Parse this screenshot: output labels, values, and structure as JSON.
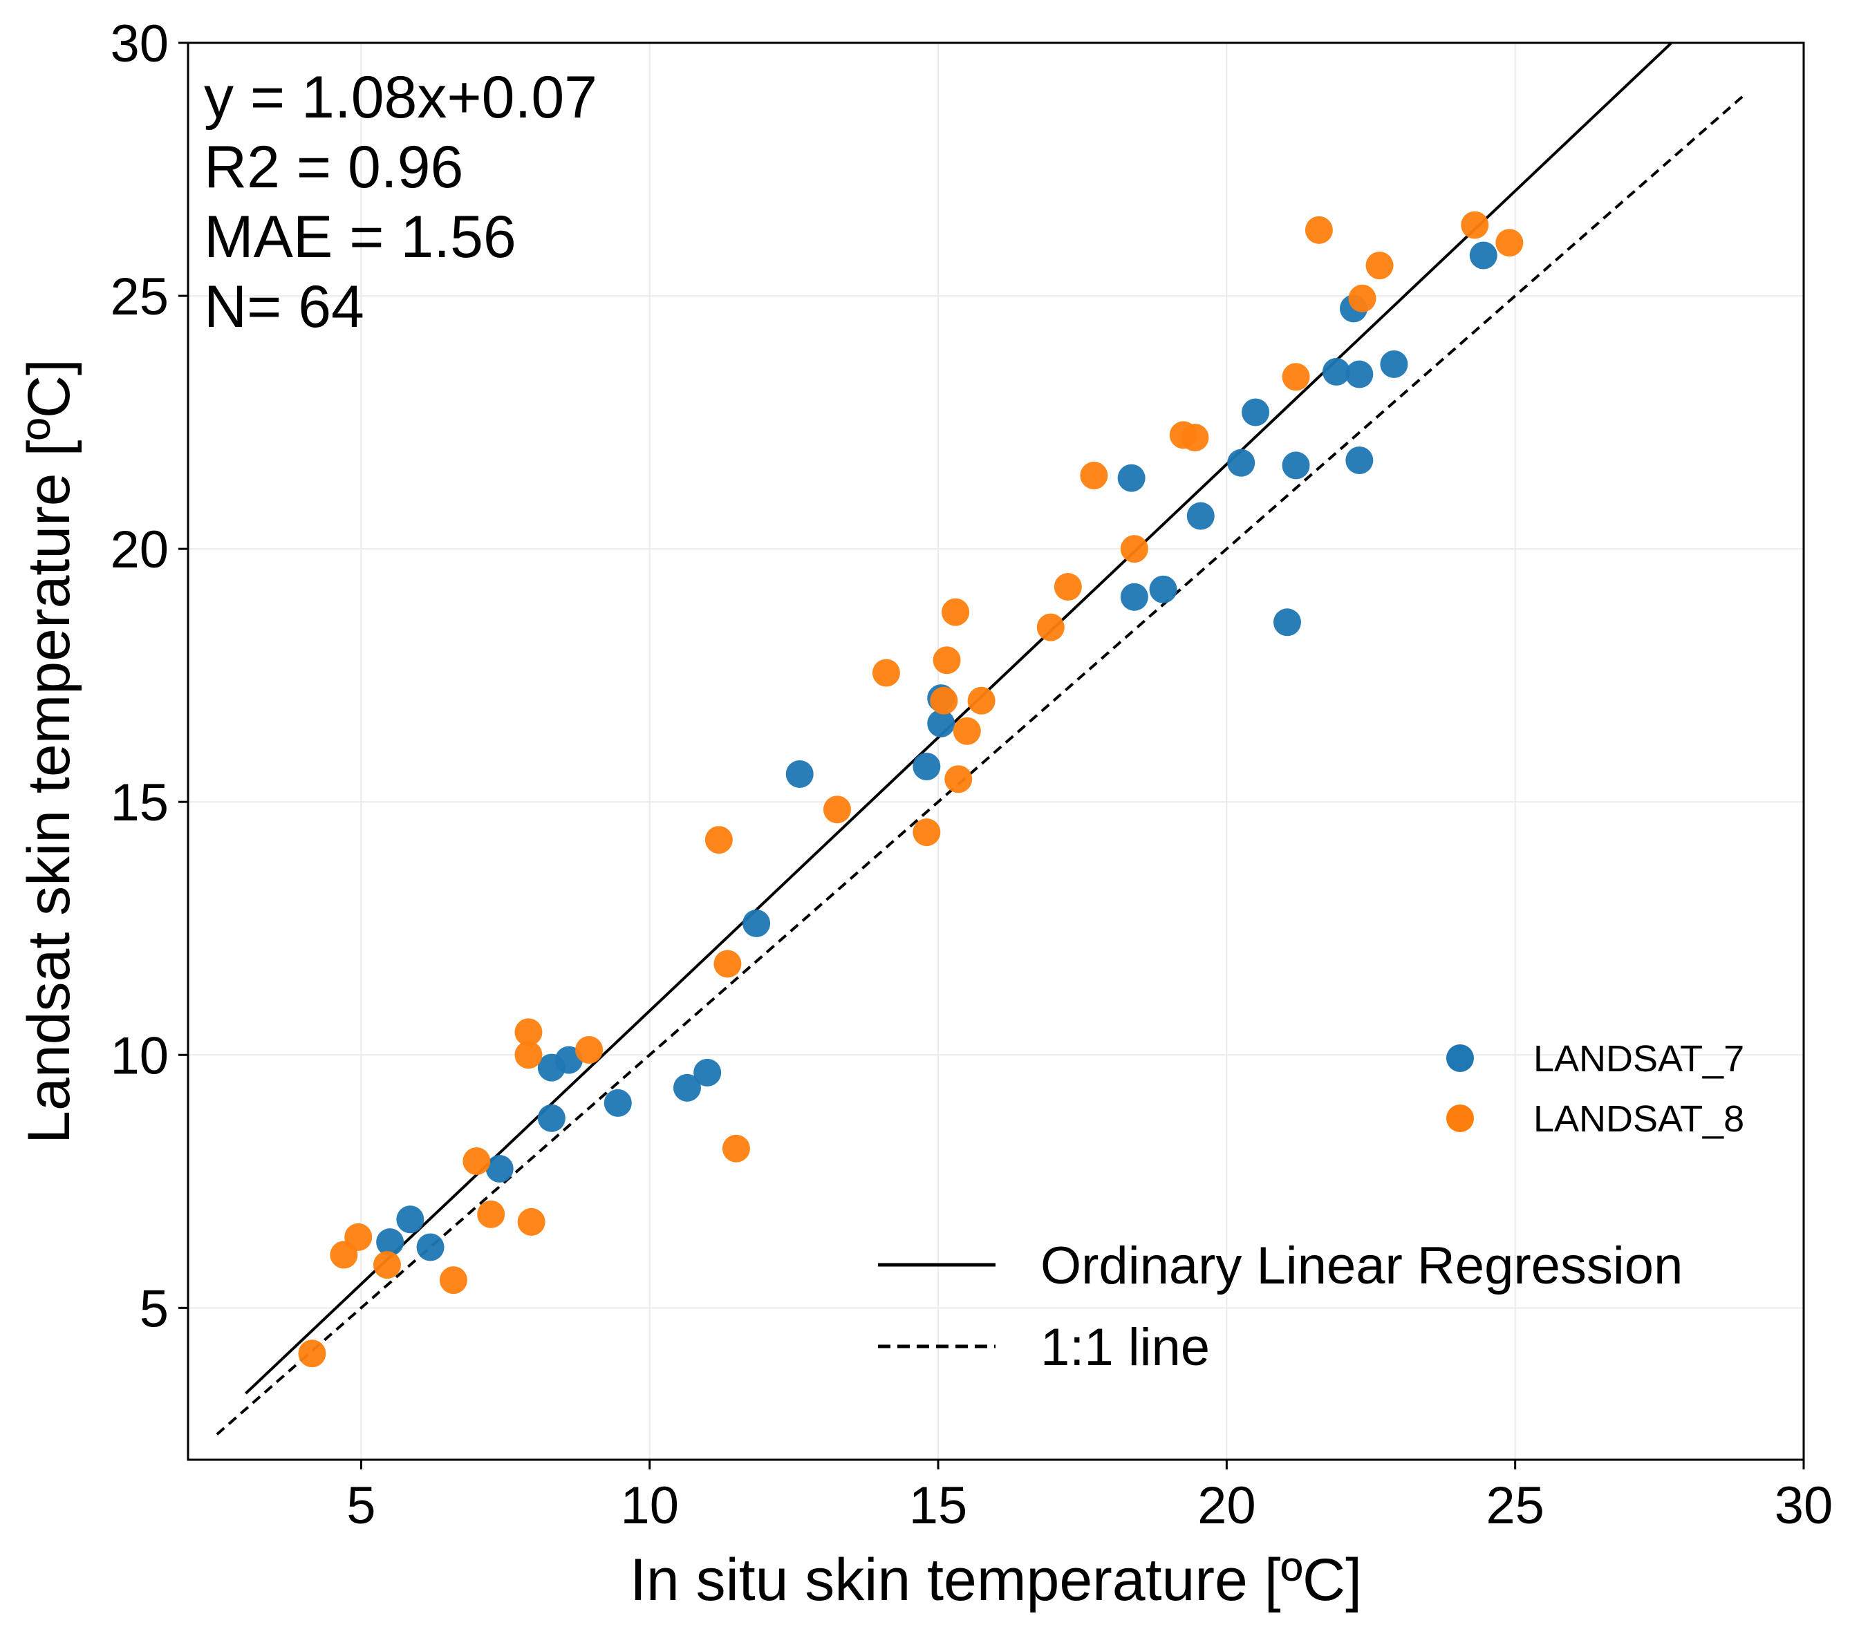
{
  "chart_data": {
    "type": "scatter",
    "xlabel": "In situ skin temperature [ºC]",
    "ylabel": "Landsat skin temperature [ºC]",
    "xlim": [
      2,
      30
    ],
    "ylim": [
      2,
      30
    ],
    "xticks": [
      5,
      10,
      15,
      20,
      25,
      30
    ],
    "yticks": [
      5,
      10,
      15,
      20,
      25,
      30
    ],
    "grid": true,
    "annotations": [
      "y = 1.08x+0.07",
      "R2 = 0.96",
      "MAE = 1.56",
      "N= 64"
    ],
    "series": [
      {
        "name": "LANDSAT_7",
        "color": "#1f77b4",
        "points": [
          [
            5.5,
            6.3
          ],
          [
            5.85,
            6.75
          ],
          [
            6.2,
            6.2
          ],
          [
            7.4,
            7.75
          ],
          [
            8.3,
            8.75
          ],
          [
            8.3,
            9.75
          ],
          [
            8.6,
            9.9
          ],
          [
            9.45,
            9.05
          ],
          [
            10.65,
            9.35
          ],
          [
            11.0,
            9.65
          ],
          [
            11.85,
            12.6
          ],
          [
            12.6,
            15.55
          ],
          [
            14.8,
            15.7
          ],
          [
            15.05,
            16.55
          ],
          [
            15.05,
            17.05
          ],
          [
            18.35,
            21.4
          ],
          [
            18.4,
            19.05
          ],
          [
            18.9,
            19.2
          ],
          [
            19.55,
            20.65
          ],
          [
            20.25,
            21.7
          ],
          [
            20.5,
            22.7
          ],
          [
            21.05,
            18.55
          ],
          [
            21.2,
            21.65
          ],
          [
            21.9,
            23.5
          ],
          [
            22.2,
            24.75
          ],
          [
            22.3,
            23.45
          ],
          [
            22.3,
            21.75
          ],
          [
            22.9,
            23.65
          ],
          [
            24.45,
            25.8
          ]
        ]
      },
      {
        "name": "LANDSAT_8",
        "color": "#ff7f0e",
        "points": [
          [
            4.15,
            4.1
          ],
          [
            4.7,
            6.05
          ],
          [
            4.95,
            6.4
          ],
          [
            5.45,
            5.85
          ],
          [
            6.6,
            5.55
          ],
          [
            7.0,
            7.9
          ],
          [
            7.25,
            6.85
          ],
          [
            7.9,
            10.45
          ],
          [
            7.9,
            10.0
          ],
          [
            7.95,
            6.7
          ],
          [
            8.95,
            10.1
          ],
          [
            11.2,
            14.25
          ],
          [
            11.35,
            11.8
          ],
          [
            11.5,
            8.15
          ],
          [
            13.25,
            14.85
          ],
          [
            14.1,
            17.55
          ],
          [
            14.8,
            14.4
          ],
          [
            15.1,
            17.0
          ],
          [
            15.15,
            17.8
          ],
          [
            15.3,
            18.75
          ],
          [
            15.35,
            15.45
          ],
          [
            15.5,
            16.4
          ],
          [
            15.75,
            17.0
          ],
          [
            16.95,
            18.45
          ],
          [
            17.25,
            19.25
          ],
          [
            17.7,
            21.45
          ],
          [
            18.4,
            20.0
          ],
          [
            19.25,
            22.25
          ],
          [
            19.45,
            22.2
          ],
          [
            21.2,
            23.4
          ],
          [
            21.6,
            26.3
          ],
          [
            22.35,
            24.95
          ],
          [
            22.65,
            25.6
          ],
          [
            24.3,
            26.4
          ],
          [
            24.9,
            26.05
          ]
        ]
      }
    ],
    "lines": [
      {
        "name": "Ordinary Linear Regression",
        "style": "solid",
        "color": "#000000",
        "x": [
          3.0,
          27.7
        ],
        "y": [
          3.31,
          29.99
        ]
      },
      {
        "name": "1:1 line",
        "style": "dashed",
        "color": "#000000",
        "x": [
          2.5,
          29.0
        ],
        "y": [
          2.5,
          29.0
        ]
      }
    ],
    "legend": {
      "markers_position": "middle-right",
      "lines_position": "bottom-right"
    }
  }
}
